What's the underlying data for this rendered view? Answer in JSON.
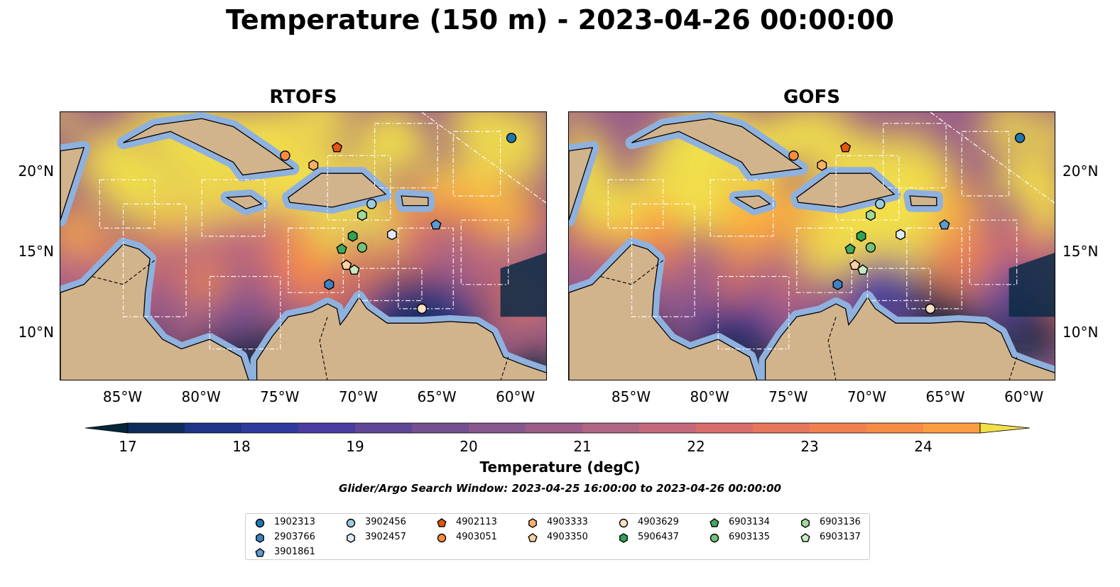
{
  "title": "Temperature (150 m) - 2023-04-26 00:00:00",
  "panels": [
    {
      "title": "RTOFS"
    },
    {
      "title": "GOFS"
    }
  ],
  "x_ticks": [
    "85°W",
    "80°W",
    "75°W",
    "70°W",
    "65°W",
    "60°W"
  ],
  "y_ticks": [
    "20°N",
    "15°N",
    "10°N"
  ],
  "map_extent": {
    "lon": [
      -89,
      -58
    ],
    "lat": [
      7,
      23.7
    ]
  },
  "colorbar": {
    "label": "Temperature (degC)",
    "min": 16.5,
    "max": 25,
    "step": 0.5,
    "ticks": [
      "17",
      "18",
      "19",
      "20",
      "21",
      "22",
      "23",
      "24"
    ],
    "tick_values": [
      17,
      18,
      19,
      20,
      21,
      22,
      23,
      24
    ],
    "colors": [
      "#05263a",
      "#0e2c5c",
      "#1f3588",
      "#2f3a9e",
      "#4a3c9e",
      "#604696",
      "#745091",
      "#87588d",
      "#9b5e88",
      "#b06683",
      "#c4697c",
      "#d76e6c",
      "#e5775c",
      "#ef8150",
      "#f78c45",
      "#fb9d42",
      "#fbae40",
      "#f8c840",
      "#f2e04a"
    ]
  },
  "search_window": "Glider/Argo Search Window: 2023-04-25 16:00:00 to 2023-04-26 00:00:00",
  "floats": [
    {
      "id": "1902313",
      "marker": "circle",
      "color": "#1f77b4",
      "lon": -60.3,
      "lat": 22.1
    },
    {
      "id": "2903766",
      "marker": "hexagon",
      "color": "#3c82c4",
      "lon": -71.9,
      "lat": 13.0
    },
    {
      "id": "3901861",
      "marker": "pentagon",
      "color": "#5c9bd5",
      "lon": -65.1,
      "lat": 16.7
    },
    {
      "id": "3902456",
      "marker": "circle",
      "color": "#9ecae1",
      "lon": -69.2,
      "lat": 18.0
    },
    {
      "id": "3902457",
      "marker": "hexagon",
      "color": "#deebf7",
      "lon": -67.9,
      "lat": 16.1
    },
    {
      "id": "4902113",
      "marker": "pentagon",
      "color": "#e6550d",
      "lon": -71.4,
      "lat": 21.5
    },
    {
      "id": "4903051",
      "marker": "circle",
      "color": "#fd8d3c",
      "lon": -74.7,
      "lat": 21.0
    },
    {
      "id": "4903333",
      "marker": "hexagon",
      "color": "#fdae6b",
      "lon": -72.9,
      "lat": 20.4
    },
    {
      "id": "4903350",
      "marker": "pentagon",
      "color": "#fdd0a2",
      "lon": -70.8,
      "lat": 14.2
    },
    {
      "id": "4903629",
      "marker": "circle",
      "color": "#fde0c5",
      "lon": -66.0,
      "lat": 11.5
    },
    {
      "id": "5906437",
      "marker": "hexagon",
      "color": "#31a354",
      "lon": -70.4,
      "lat": 16.0
    },
    {
      "id": "6903134",
      "marker": "pentagon",
      "color": "#41ab5d",
      "lon": -71.1,
      "lat": 15.2
    },
    {
      "id": "6903135",
      "marker": "circle",
      "color": "#74c476",
      "lon": -69.8,
      "lat": 15.3
    },
    {
      "id": "6903136",
      "marker": "hexagon",
      "color": "#a1d99b",
      "lon": -69.8,
      "lat": 17.3
    },
    {
      "id": "6903137",
      "marker": "pentagon",
      "color": "#c7e9c0",
      "lon": -70.3,
      "lat": 13.9
    }
  ]
}
